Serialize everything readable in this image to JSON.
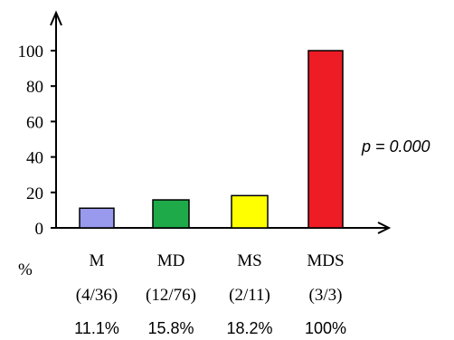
{
  "chart_data": {
    "type": "bar",
    "categories": [
      "M",
      "MD",
      "MS",
      "MDS"
    ],
    "counts": [
      "(4/36)",
      "(12/76)",
      "(2/11)",
      "(3/3)"
    ],
    "percent_labels": [
      "11.1%",
      "15.8%",
      "18.2%",
      "100%"
    ],
    "values": [
      11.1,
      15.8,
      18.2,
      100
    ],
    "colors": [
      "#9999ee",
      "#1faa4a",
      "#ffff00",
      "#ee1c24"
    ],
    "ylabel": "%",
    "yticks": [
      0,
      20,
      40,
      60,
      80,
      100
    ],
    "ylim": [
      0,
      100
    ],
    "annotation": "p = 0.000",
    "grid": false
  }
}
